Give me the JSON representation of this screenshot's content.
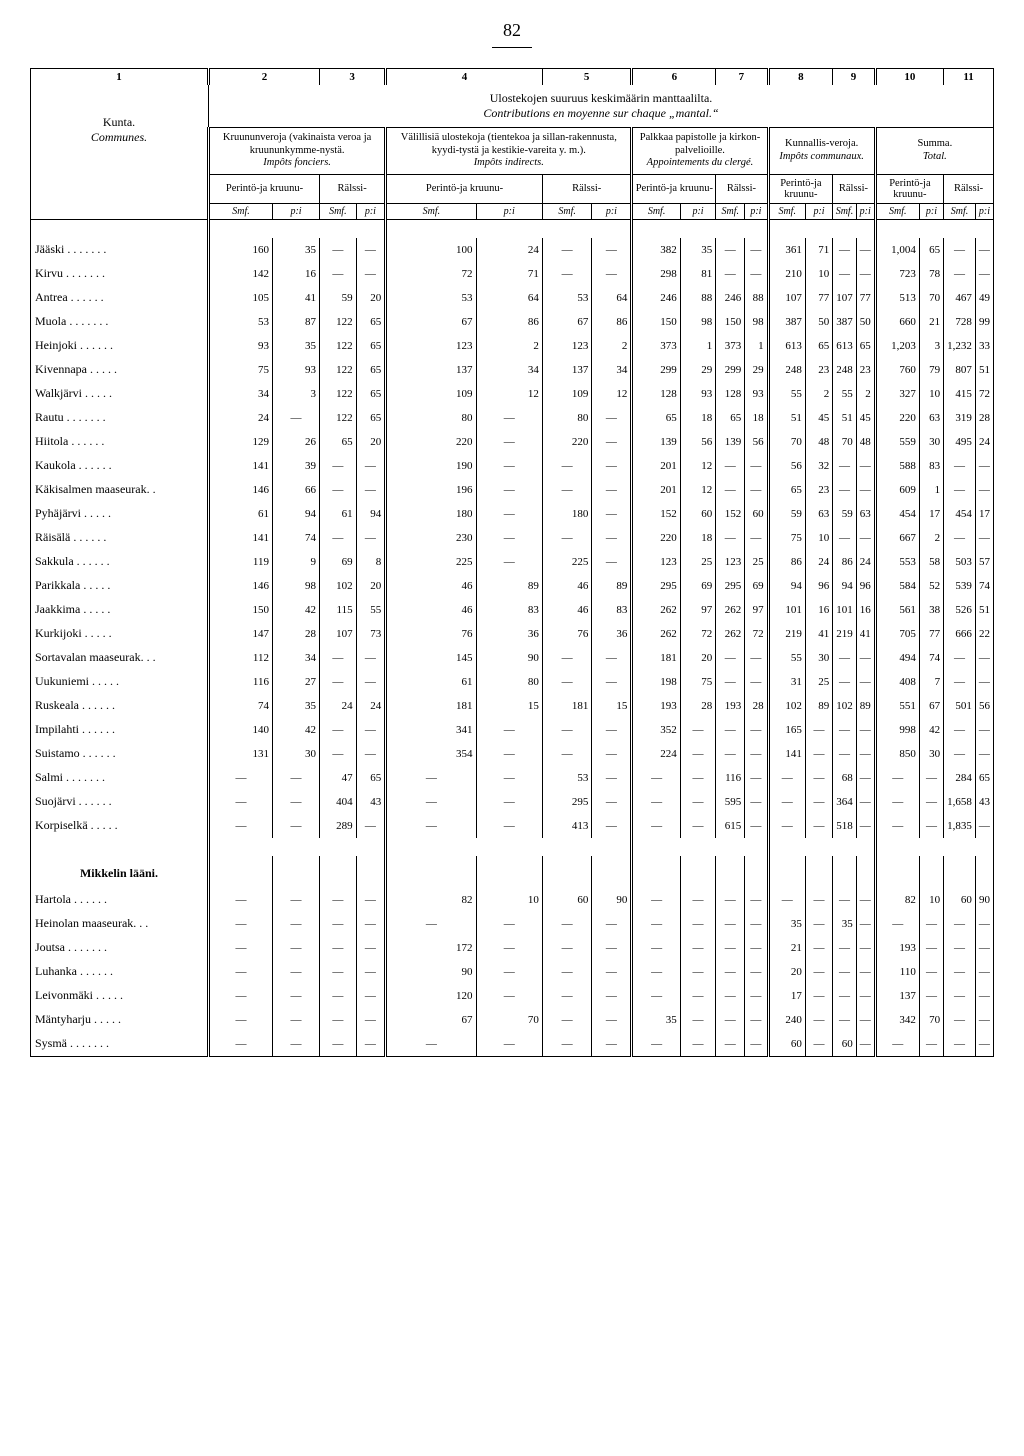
{
  "page_number": "82",
  "col_numbers": [
    "1",
    "2",
    "3",
    "4",
    "5",
    "6",
    "7",
    "8",
    "9",
    "10",
    "11"
  ],
  "caption_line1": "Ulostekojen suuruus keskimäärin manttaalilta.",
  "caption_line2": "Contributions en moyenne sur chaque „mantal.“",
  "kunta_label": "Kunta.",
  "communes_label": "Communes.",
  "group_headers": {
    "g1": "Kruununveroja (vakinaista veroa ja kruununkymme-nystä.",
    "g1i": "Impôts fonciers.",
    "g2": "Välillisiä ulostekoja (tientekoa ja sillan-rakennusta, kyydi-tystä ja kestikie-vareita y. m.).",
    "g2i": "Impôts indirects.",
    "g3": "Palkkaa papistolle ja kirkon-palvelioille.",
    "g3i": "Appointements du clergé.",
    "g4": "Kunnallis-veroja.",
    "g4i": "Impôts communaux.",
    "g5": "Summa.",
    "g5i": "Total."
  },
  "sub_perinto": "Perintö-ja kruunu-",
  "sub_ralssi": "Rälssi-",
  "unit_smf": "Smf.",
  "unit_p": "p:i",
  "rows": [
    {
      "label": "Jääski .  .  .  .  .  .  .",
      "v": [
        "160",
        "35",
        "—",
        "—",
        "100",
        "24",
        "—",
        "—",
        "382",
        "35",
        "—",
        "—",
        "361",
        "71",
        "—",
        "—",
        "1,004",
        "65",
        "—",
        "—"
      ]
    },
    {
      "label": "Kirvu .  .  .  .  .  .  .",
      "v": [
        "142",
        "16",
        "—",
        "—",
        "72",
        "71",
        "—",
        "—",
        "298",
        "81",
        "—",
        "—",
        "210",
        "10",
        "—",
        "—",
        "723",
        "78",
        "—",
        "—"
      ]
    },
    {
      "label": "Antrea  .  .  .  .  .  .",
      "v": [
        "105",
        "41",
        "59",
        "20",
        "53",
        "64",
        "53",
        "64",
        "246",
        "88",
        "246",
        "88",
        "107",
        "77",
        "107",
        "77",
        "513",
        "70",
        "467",
        "49"
      ]
    },
    {
      "label": "Muola .  .  .  .  .  .  .",
      "v": [
        "53",
        "87",
        "122",
        "65",
        "67",
        "86",
        "67",
        "86",
        "150",
        "98",
        "150",
        "98",
        "387",
        "50",
        "387",
        "50",
        "660",
        "21",
        "728",
        "99"
      ]
    },
    {
      "label": "Heinjoki .  .  .  .  .  .",
      "v": [
        "93",
        "35",
        "122",
        "65",
        "123",
        "2",
        "123",
        "2",
        "373",
        "1",
        "373",
        "1",
        "613",
        "65",
        "613",
        "65",
        "1,203",
        "3",
        "1,232",
        "33"
      ]
    },
    {
      "label": "Kivennapa  .  .  .  .  .",
      "v": [
        "75",
        "93",
        "122",
        "65",
        "137",
        "34",
        "137",
        "34",
        "299",
        "29",
        "299",
        "29",
        "248",
        "23",
        "248",
        "23",
        "760",
        "79",
        "807",
        "51"
      ]
    },
    {
      "label": "Walkjärvi  .  .  .  .  .",
      "v": [
        "34",
        "3",
        "122",
        "65",
        "109",
        "12",
        "109",
        "12",
        "128",
        "93",
        "128",
        "93",
        "55",
        "2",
        "55",
        "2",
        "327",
        "10",
        "415",
        "72"
      ]
    },
    {
      "label": "Rautu .  .  .  .  .  .  .",
      "v": [
        "24",
        "—",
        "122",
        "65",
        "80",
        "—",
        "80",
        "—",
        "65",
        "18",
        "65",
        "18",
        "51",
        "45",
        "51",
        "45",
        "220",
        "63",
        "319",
        "28"
      ]
    },
    {
      "label": "Hiitola  .  .  .  .  .  .",
      "v": [
        "129",
        "26",
        "65",
        "20",
        "220",
        "—",
        "220",
        "—",
        "139",
        "56",
        "139",
        "56",
        "70",
        "48",
        "70",
        "48",
        "559",
        "30",
        "495",
        "24"
      ]
    },
    {
      "label": "Kaukola .  .  .  .  .  .",
      "v": [
        "141",
        "39",
        "—",
        "—",
        "190",
        "—",
        "—",
        "—",
        "201",
        "12",
        "—",
        "—",
        "56",
        "32",
        "—",
        "—",
        "588",
        "83",
        "—",
        "—"
      ]
    },
    {
      "label": "Käkisalmen maaseurak.  .",
      "v": [
        "146",
        "66",
        "—",
        "—",
        "196",
        "—",
        "—",
        "—",
        "201",
        "12",
        "—",
        "—",
        "65",
        "23",
        "—",
        "—",
        "609",
        "1",
        "—",
        "—"
      ]
    },
    {
      "label": "Pyhäjärvi  .  .  .  .  .",
      "v": [
        "61",
        "94",
        "61",
        "94",
        "180",
        "—",
        "180",
        "—",
        "152",
        "60",
        "152",
        "60",
        "59",
        "63",
        "59",
        "63",
        "454",
        "17",
        "454",
        "17"
      ]
    },
    {
      "label": "Räisälä  .  .  .  .  .  .",
      "v": [
        "141",
        "74",
        "—",
        "—",
        "230",
        "—",
        "—",
        "—",
        "220",
        "18",
        "—",
        "—",
        "75",
        "10",
        "—",
        "—",
        "667",
        "2",
        "—",
        "—"
      ]
    },
    {
      "label": "Sakkula .  .  .  .  .  .",
      "v": [
        "119",
        "9",
        "69",
        "8",
        "225",
        "—",
        "225",
        "—",
        "123",
        "25",
        "123",
        "25",
        "86",
        "24",
        "86",
        "24",
        "553",
        "58",
        "503",
        "57"
      ]
    },
    {
      "label": "Parikkala  .  .  .  .  .",
      "v": [
        "146",
        "98",
        "102",
        "20",
        "46",
        "89",
        "46",
        "89",
        "295",
        "69",
        "295",
        "69",
        "94",
        "96",
        "94",
        "96",
        "584",
        "52",
        "539",
        "74"
      ]
    },
    {
      "label": "Jaakkima  .  .  .  .  .",
      "v": [
        "150",
        "42",
        "115",
        "55",
        "46",
        "83",
        "46",
        "83",
        "262",
        "97",
        "262",
        "97",
        "101",
        "16",
        "101",
        "16",
        "561",
        "38",
        "526",
        "51"
      ]
    },
    {
      "label": "Kurkijoki  .  .  .  .  .",
      "v": [
        "147",
        "28",
        "107",
        "73",
        "76",
        "36",
        "76",
        "36",
        "262",
        "72",
        "262",
        "72",
        "219",
        "41",
        "219",
        "41",
        "705",
        "77",
        "666",
        "22"
      ]
    },
    {
      "label": "Sortavalan maaseurak. .  .",
      "v": [
        "112",
        "34",
        "—",
        "—",
        "145",
        "90",
        "—",
        "—",
        "181",
        "20",
        "—",
        "—",
        "55",
        "30",
        "—",
        "—",
        "494",
        "74",
        "—",
        "—"
      ]
    },
    {
      "label": "Uukuniemi .  .  .  .  .",
      "v": [
        "116",
        "27",
        "—",
        "—",
        "61",
        "80",
        "—",
        "—",
        "198",
        "75",
        "—",
        "—",
        "31",
        "25",
        "—",
        "—",
        "408",
        "7",
        "—",
        "—"
      ]
    },
    {
      "label": "Ruskeala .  .  .  .  .  .",
      "v": [
        "74",
        "35",
        "24",
        "24",
        "181",
        "15",
        "181",
        "15",
        "193",
        "28",
        "193",
        "28",
        "102",
        "89",
        "102",
        "89",
        "551",
        "67",
        "501",
        "56"
      ]
    },
    {
      "label": "Impilahti .  .  .  .  .  .",
      "v": [
        "140",
        "42",
        "—",
        "—",
        "341",
        "—",
        "—",
        "—",
        "352",
        "—",
        "—",
        "—",
        "165",
        "—",
        "—",
        "—",
        "998",
        "42",
        "—",
        "—"
      ]
    },
    {
      "label": "Suistamo .  .  .  .  .  .",
      "v": [
        "131",
        "30",
        "—",
        "—",
        "354",
        "—",
        "—",
        "—",
        "224",
        "—",
        "—",
        "—",
        "141",
        "—",
        "—",
        "—",
        "850",
        "30",
        "—",
        "—"
      ]
    },
    {
      "label": "Salmi .  .  .  .  .  .  .",
      "v": [
        "—",
        "—",
        "47",
        "65",
        "—",
        "—",
        "53",
        "—",
        "—",
        "—",
        "116",
        "—",
        "—",
        "—",
        "68",
        "—",
        "—",
        "—",
        "284",
        "65"
      ]
    },
    {
      "label": "Suojärvi .  .  .  .  .  .",
      "v": [
        "—",
        "—",
        "404",
        "43",
        "—",
        "—",
        "295",
        "—",
        "—",
        "—",
        "595",
        "—",
        "—",
        "—",
        "364",
        "—",
        "—",
        "—",
        "1,658",
        "43"
      ]
    },
    {
      "label": "Korpiselkä .  .  .  .  .",
      "v": [
        "—",
        "—",
        "289",
        "—",
        "—",
        "—",
        "413",
        "—",
        "—",
        "—",
        "615",
        "—",
        "—",
        "—",
        "518",
        "—",
        "—",
        "—",
        "1,835",
        "—"
      ]
    }
  ],
  "section2_title": "Mikkelin lääni.",
  "rows2": [
    {
      "label": "Hartola  .  .  .  .  .  .",
      "v": [
        "—",
        "—",
        "—",
        "—",
        "82",
        "10",
        "60",
        "90",
        "—",
        "—",
        "—",
        "—",
        "—",
        "—",
        "—",
        "—",
        "82",
        "10",
        "60",
        "90"
      ]
    },
    {
      "label": "Heinolan maaseurak.  .  .",
      "v": [
        "—",
        "—",
        "—",
        "—",
        "—",
        "—",
        "—",
        "—",
        "—",
        "—",
        "—",
        "—",
        "35",
        "—",
        "35",
        "—",
        "—",
        "—",
        "—",
        "—"
      ]
    },
    {
      "label": "Joutsa .  .  .  .  .  .  .",
      "v": [
        "—",
        "—",
        "—",
        "—",
        "172",
        "—",
        "—",
        "—",
        "—",
        "—",
        "—",
        "—",
        "21",
        "—",
        "—",
        "—",
        "193",
        "—",
        "—",
        "—"
      ]
    },
    {
      "label": "Luhanka .  .  .  .  .  .",
      "v": [
        "—",
        "—",
        "—",
        "—",
        "90",
        "—",
        "—",
        "—",
        "—",
        "—",
        "—",
        "—",
        "20",
        "—",
        "—",
        "—",
        "110",
        "—",
        "—",
        "—"
      ]
    },
    {
      "label": "Leivonmäki .  .  .  .  .",
      "v": [
        "—",
        "—",
        "—",
        "—",
        "120",
        "—",
        "—",
        "—",
        "—",
        "—",
        "—",
        "—",
        "17",
        "—",
        "—",
        "—",
        "137",
        "—",
        "—",
        "—"
      ]
    },
    {
      "label": "Mäntyharju .  .  .  .  .",
      "v": [
        "—",
        "—",
        "—",
        "—",
        "67",
        "70",
        "—",
        "—",
        "35",
        "—",
        "—",
        "—",
        "240",
        "—",
        "—",
        "—",
        "342",
        "70",
        "—",
        "—"
      ]
    },
    {
      "label": "Sysmä .  .  .  .  .  .  .",
      "v": [
        "—",
        "—",
        "—",
        "—",
        "—",
        "—",
        "—",
        "—",
        "—",
        "—",
        "—",
        "—",
        "60",
        "—",
        "60",
        "—",
        "—",
        "—",
        "—",
        "—"
      ]
    }
  ]
}
